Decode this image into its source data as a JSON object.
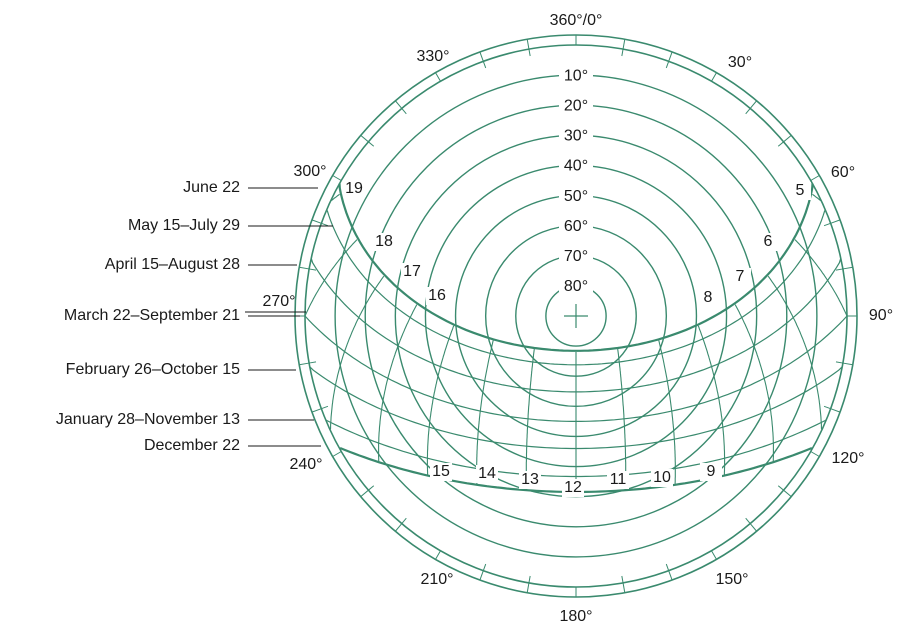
{
  "colors": {
    "line": "#3a8a6e",
    "text": "#1a1a1a",
    "background": "#ffffff"
  },
  "azimuth_labels": [
    {
      "az": 0,
      "text": "360°/0°"
    },
    {
      "az": 30,
      "text": "30°"
    },
    {
      "az": 60,
      "text": "60°"
    },
    {
      "az": 90,
      "text": "90°"
    },
    {
      "az": 120,
      "text": "120°"
    },
    {
      "az": 150,
      "text": "150°"
    },
    {
      "az": 180,
      "text": "180°"
    },
    {
      "az": 210,
      "text": "210°"
    },
    {
      "az": 240,
      "text": "240°"
    },
    {
      "az": 270,
      "text": "270°"
    },
    {
      "az": 300,
      "text": "300°"
    },
    {
      "az": 330,
      "text": "330°"
    }
  ],
  "altitude_rings": [
    {
      "alt": 10,
      "text": "10°"
    },
    {
      "alt": 20,
      "text": "20°"
    },
    {
      "alt": 30,
      "text": "30°"
    },
    {
      "alt": 40,
      "text": "40°"
    },
    {
      "alt": 50,
      "text": "50°"
    },
    {
      "alt": 60,
      "text": "60°"
    },
    {
      "alt": 70,
      "text": "70°"
    },
    {
      "alt": 80,
      "text": "80°"
    }
  ],
  "date_labels": [
    "June 22",
    "May 15–July 29",
    "April 15–August 28",
    "March 22–September 21",
    "February 26–October 15",
    "January 28–November 13",
    "December 22"
  ],
  "hour_labels": [
    "5",
    "6",
    "7",
    "8",
    "9",
    "10",
    "11",
    "12",
    "13",
    "14",
    "15",
    "16",
    "17",
    "18",
    "19"
  ]
}
